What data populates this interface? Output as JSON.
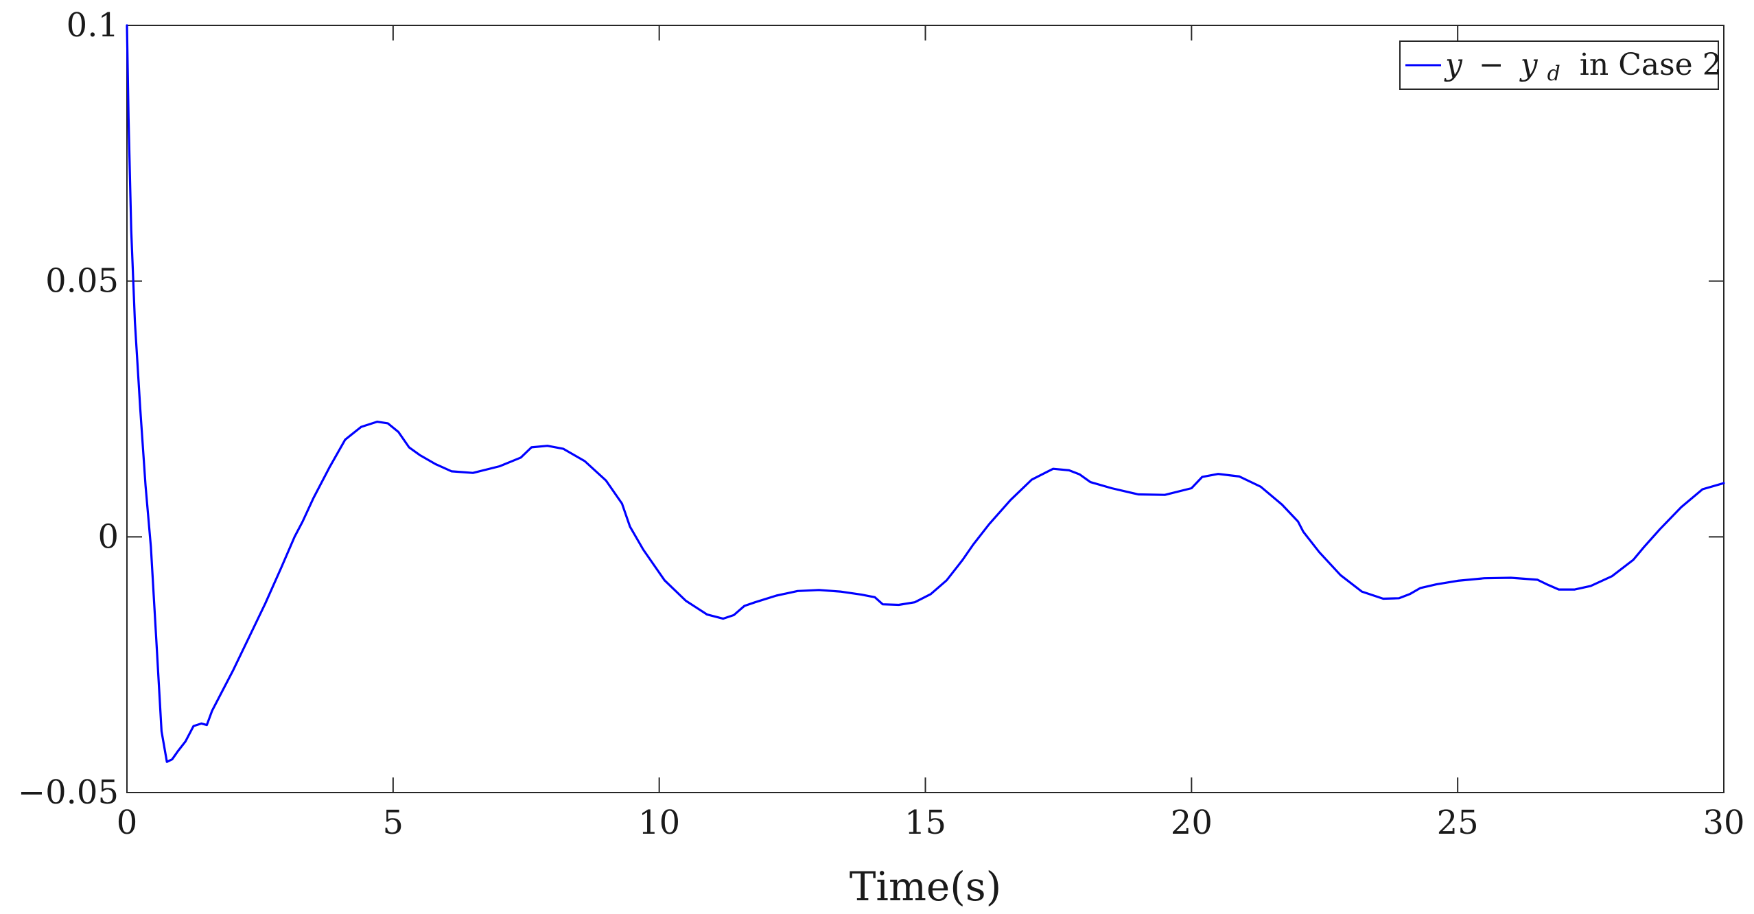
{
  "chart_data": {
    "type": "line",
    "title": "",
    "xlabel": "Time(s)",
    "ylabel": "",
    "xlim": [
      0,
      30
    ],
    "ylim": [
      -0.05,
      0.1
    ],
    "xticks": [
      0,
      5,
      10,
      15,
      20,
      25,
      30
    ],
    "xtick_labels": [
      "0",
      "5",
      "10",
      "15",
      "20",
      "25",
      "30"
    ],
    "yticks": [
      -0.05,
      0,
      0.05,
      0.1
    ],
    "ytick_labels": [
      "−0.05",
      "0",
      "0.05",
      "0.1"
    ],
    "grid": false,
    "legend": {
      "position": "top-right",
      "entries": [
        {
          "math_a": "y",
          "op": "−",
          "math_b": "y",
          "sub": "d",
          "text": " in Case 2"
        }
      ]
    },
    "series": [
      {
        "color": "#0000ff",
        "x": [
          0,
          0.03,
          0.08,
          0.15,
          0.25,
          0.35,
          0.45,
          0.55,
          0.65,
          0.75,
          0.85,
          0.95,
          1.1,
          1.25,
          1.4,
          1.5,
          1.6,
          1.75,
          2.0,
          2.3,
          2.6,
          2.9,
          3.15,
          3.3,
          3.5,
          3.8,
          4.1,
          4.4,
          4.7,
          4.9,
          5.1,
          5.3,
          5.5,
          5.8,
          6.1,
          6.5,
          7.0,
          7.4,
          7.6,
          7.9,
          8.2,
          8.6,
          9.0,
          9.3,
          9.45,
          9.7,
          10.1,
          10.5,
          10.9,
          11.2,
          11.4,
          11.6,
          11.8,
          12.2,
          12.6,
          13.0,
          13.4,
          13.8,
          14.05,
          14.2,
          14.5,
          14.8,
          15.1,
          15.4,
          15.7,
          15.9,
          16.2,
          16.6,
          17.0,
          17.4,
          17.7,
          17.9,
          18.1,
          18.5,
          19.0,
          19.5,
          20.0,
          20.2,
          20.5,
          20.9,
          21.3,
          21.7,
          22.0,
          22.1,
          22.4,
          22.8,
          23.2,
          23.6,
          23.9,
          24.1,
          24.3,
          24.6,
          25.0,
          25.5,
          26.0,
          26.5,
          26.7,
          26.9,
          27.2,
          27.5,
          27.9,
          28.3,
          28.5,
          28.8,
          29.2,
          29.6,
          30.0
        ],
        "y": [
          0.1,
          0.082,
          0.06,
          0.042,
          0.025,
          0.01,
          -0.002,
          -0.02,
          -0.038,
          -0.044,
          -0.0435,
          -0.042,
          -0.04,
          -0.037,
          -0.0365,
          -0.0368,
          -0.034,
          -0.031,
          -0.026,
          -0.0195,
          -0.013,
          -0.006,
          0.0,
          0.003,
          0.0075,
          0.0135,
          0.019,
          0.0215,
          0.0225,
          0.0222,
          0.0205,
          0.0175,
          0.016,
          0.0142,
          0.0128,
          0.0125,
          0.0138,
          0.0155,
          0.0175,
          0.0178,
          0.0172,
          0.0148,
          0.011,
          0.0065,
          0.002,
          -0.0025,
          -0.0085,
          -0.0125,
          -0.0152,
          -0.016,
          -0.0153,
          -0.0135,
          -0.0128,
          -0.0115,
          -0.0106,
          -0.0104,
          -0.0107,
          -0.0113,
          -0.0118,
          -0.0132,
          -0.0133,
          -0.0128,
          -0.0112,
          -0.0085,
          -0.0045,
          -0.0015,
          0.0025,
          0.0072,
          0.0112,
          0.0133,
          0.013,
          0.0122,
          0.0107,
          0.0095,
          0.0083,
          0.0082,
          0.0095,
          0.0117,
          0.0123,
          0.0118,
          0.0098,
          0.0063,
          0.003,
          0.001,
          -0.003,
          -0.0075,
          -0.0107,
          -0.0121,
          -0.012,
          -0.0112,
          -0.01,
          -0.0093,
          -0.0086,
          -0.0081,
          -0.008,
          -0.0084,
          -0.0094,
          -0.0103,
          -0.0103,
          -0.0096,
          -0.0077,
          -0.0045,
          -0.002,
          0.0015,
          0.0058,
          0.0093,
          0.0105
        ]
      }
    ]
  }
}
